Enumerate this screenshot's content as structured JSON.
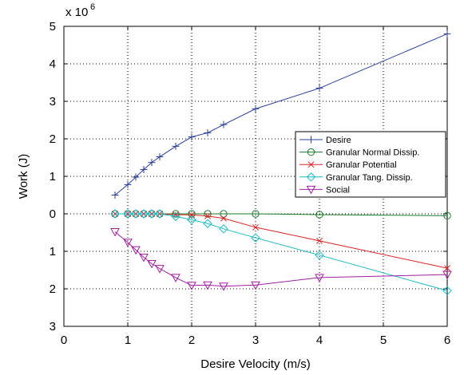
{
  "chart_data": {
    "type": "line",
    "xlabel": "Desire Velocity (m/s)",
    "ylabel": "Work (J)",
    "y_multiplier_label": "x 10",
    "y_multiplier_exponent": "6",
    "xlim": [
      0,
      6
    ],
    "ylim": [
      -3,
      5
    ],
    "x_ticks": [
      0,
      1,
      2,
      3,
      4,
      5,
      6
    ],
    "x_tick_labels": [
      "0",
      "1",
      "2",
      "3",
      "4",
      "5",
      "6"
    ],
    "y_ticks": [
      5,
      4,
      3,
      2,
      1,
      0,
      -1,
      -2,
      -3
    ],
    "y_tick_labels": [
      "5",
      "4",
      "3",
      "2",
      "1",
      "0",
      "1",
      "2",
      "3"
    ],
    "grid": true,
    "grid_style": "dotted",
    "legend_position": "right, mid-height",
    "series": [
      {
        "name": "Desire",
        "color": "#2a3f9a",
        "marker": "plus",
        "x": [
          0.8,
          1.0,
          1.125,
          1.25,
          1.375,
          1.5,
          1.75,
          2.0,
          2.25,
          2.5,
          3.0,
          4.0,
          6.0
        ],
        "y": [
          0.5,
          0.78,
          0.98,
          1.18,
          1.37,
          1.52,
          1.8,
          2.05,
          2.16,
          2.38,
          2.8,
          3.35,
          4.8
        ]
      },
      {
        "name": "Granular Normal Dissip.",
        "color": "#1a7a2a",
        "marker": "circle",
        "x": [
          0.8,
          1.0,
          1.125,
          1.25,
          1.375,
          1.5,
          1.75,
          2.0,
          2.25,
          2.5,
          3.0,
          4.0,
          6.0
        ],
        "y": [
          0.0,
          0.0,
          0.0,
          0.0,
          0.0,
          0.0,
          0.0,
          0.0,
          0.0,
          0.0,
          0.0,
          -0.02,
          -0.05
        ]
      },
      {
        "name": "Granular Potential",
        "color": "#dd2222",
        "marker": "x",
        "x": [
          0.8,
          1.0,
          1.125,
          1.25,
          1.375,
          1.5,
          1.75,
          2.0,
          2.25,
          2.5,
          3.0,
          4.0,
          6.0
        ],
        "y": [
          0.0,
          0.0,
          0.0,
          0.0,
          0.0,
          0.0,
          -0.02,
          -0.03,
          -0.06,
          -0.12,
          -0.36,
          -0.72,
          -1.45
        ]
      },
      {
        "name": "Granular Tang. Dissip.",
        "color": "#1ab8c4",
        "marker": "diamond",
        "x": [
          0.8,
          1.0,
          1.125,
          1.25,
          1.375,
          1.5,
          1.75,
          2.0,
          2.25,
          2.5,
          3.0,
          4.0,
          6.0
        ],
        "y": [
          0.0,
          0.0,
          0.0,
          0.0,
          0.0,
          0.0,
          -0.07,
          -0.16,
          -0.26,
          -0.4,
          -0.64,
          -1.1,
          -2.05
        ]
      },
      {
        "name": "Social",
        "color": "#a020a0",
        "marker": "triangle-down",
        "x": [
          0.8,
          1.0,
          1.125,
          1.25,
          1.375,
          1.5,
          1.75,
          2.0,
          2.25,
          2.5,
          3.0,
          4.0,
          6.0
        ],
        "y": [
          -0.48,
          -0.76,
          -0.96,
          -1.16,
          -1.33,
          -1.46,
          -1.7,
          -1.91,
          -1.9,
          -1.93,
          -1.9,
          -1.7,
          -1.62
        ]
      }
    ]
  }
}
